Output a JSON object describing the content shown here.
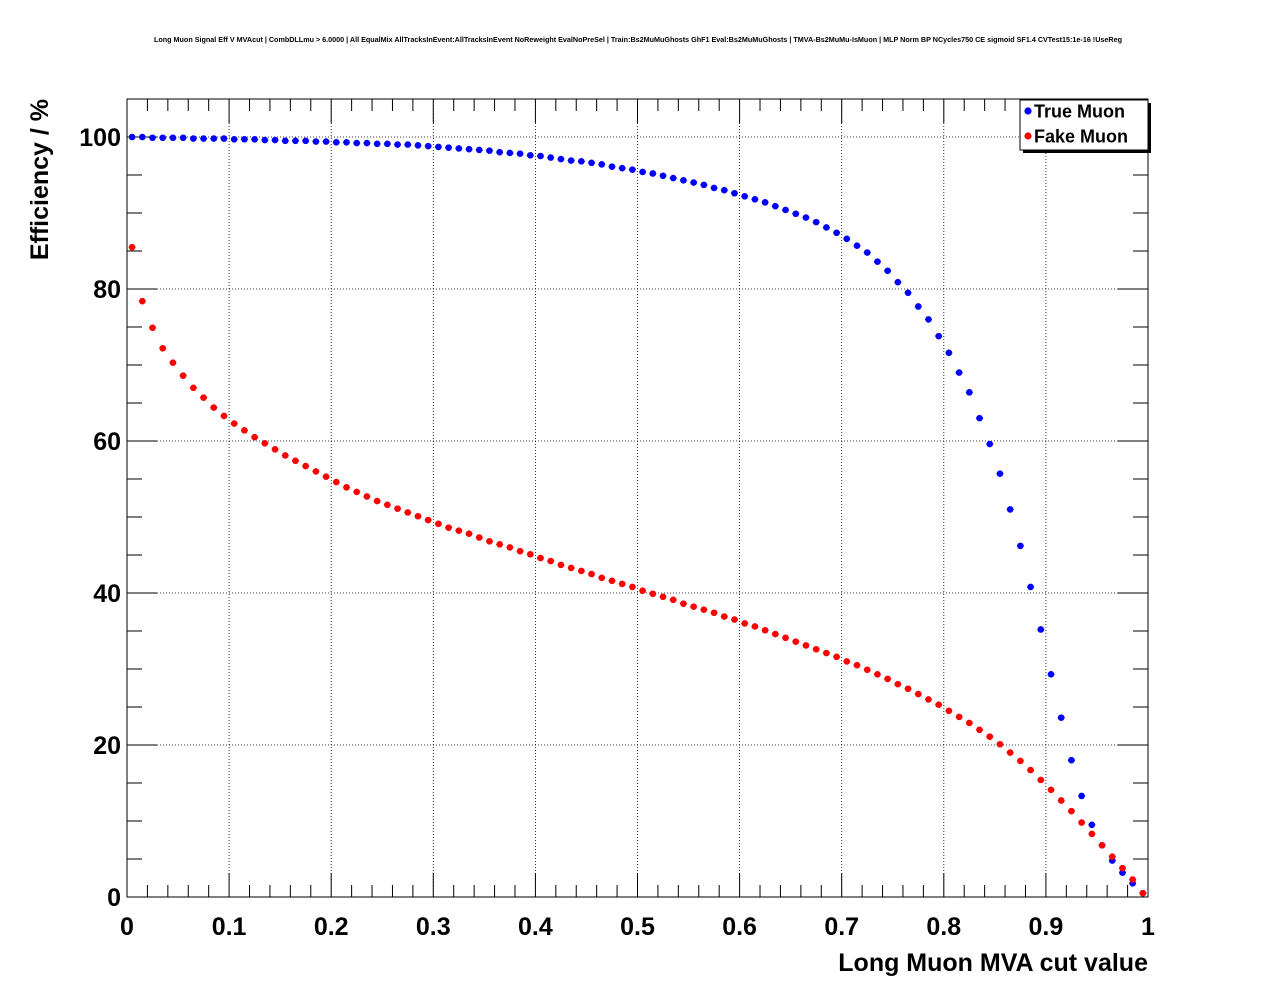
{
  "chart_data": {
    "type": "scatter",
    "title": "Long Muon Signal Eff V MVAcut | CombDLLmu > 6.0000 | All EqualMix AllTracksInEvent:AllTracksInEvent NoReweight EvalNoPreSel | Train:Bs2MuMuGhosts GhF1 Eval:Bs2MuMuGhosts | TMVA-Bs2MuMu-IsMuon | MLP Norm BP NCycles750 CE sigmoid SF1.4 CVTest15:1e-16 !UseReg",
    "xlabel": "Long Muon MVA cut value",
    "ylabel": "Efficiency / %",
    "xlim": [
      0,
      1
    ],
    "ylim": [
      0,
      105
    ],
    "x_ticks": [
      "0",
      "0.1",
      "0.2",
      "0.3",
      "0.4",
      "0.5",
      "0.6",
      "0.7",
      "0.8",
      "0.9",
      "1"
    ],
    "y_ticks": [
      "0",
      "20",
      "40",
      "60",
      "80",
      "100"
    ],
    "grid": true,
    "legend_position": "top-right",
    "x": [
      0.005,
      0.015,
      0.025,
      0.035,
      0.045,
      0.055,
      0.065,
      0.075,
      0.085,
      0.095,
      0.105,
      0.115,
      0.125,
      0.135,
      0.145,
      0.155,
      0.165,
      0.175,
      0.185,
      0.195,
      0.205,
      0.215,
      0.225,
      0.235,
      0.245,
      0.255,
      0.265,
      0.275,
      0.285,
      0.295,
      0.305,
      0.315,
      0.325,
      0.335,
      0.345,
      0.355,
      0.365,
      0.375,
      0.385,
      0.395,
      0.405,
      0.415,
      0.425,
      0.435,
      0.445,
      0.455,
      0.465,
      0.475,
      0.485,
      0.495,
      0.505,
      0.515,
      0.525,
      0.535,
      0.545,
      0.555,
      0.565,
      0.575,
      0.585,
      0.595,
      0.605,
      0.615,
      0.625,
      0.635,
      0.645,
      0.655,
      0.665,
      0.675,
      0.685,
      0.695,
      0.705,
      0.715,
      0.725,
      0.735,
      0.745,
      0.755,
      0.765,
      0.775,
      0.785,
      0.795,
      0.805,
      0.815,
      0.825,
      0.835,
      0.845,
      0.855,
      0.865,
      0.875,
      0.885,
      0.895,
      0.905,
      0.915,
      0.925,
      0.935,
      0.945,
      0.955,
      0.965,
      0.975,
      0.985,
      0.995
    ],
    "series": [
      {
        "name": "True Muon",
        "color": "#0000ff",
        "values": [
          100.0,
          100.0,
          99.9,
          99.9,
          99.9,
          99.9,
          99.8,
          99.8,
          99.8,
          99.8,
          99.7,
          99.7,
          99.7,
          99.6,
          99.6,
          99.5,
          99.5,
          99.5,
          99.4,
          99.4,
          99.3,
          99.3,
          99.2,
          99.2,
          99.1,
          99.1,
          99.0,
          99.0,
          98.9,
          98.8,
          98.7,
          98.6,
          98.5,
          98.4,
          98.3,
          98.2,
          98.0,
          97.9,
          97.8,
          97.6,
          97.5,
          97.3,
          97.1,
          96.9,
          96.8,
          96.6,
          96.4,
          96.1,
          95.9,
          95.7,
          95.4,
          95.2,
          94.9,
          94.6,
          94.3,
          94.0,
          93.7,
          93.3,
          93.0,
          92.6,
          92.2,
          91.8,
          91.4,
          90.9,
          90.4,
          89.9,
          89.4,
          88.8,
          88.1,
          87.4,
          86.6,
          85.7,
          84.8,
          83.6,
          82.4,
          80.9,
          79.5,
          77.7,
          76.0,
          73.8,
          71.6,
          69.0,
          66.4,
          63.0,
          59.6,
          55.7,
          51.0,
          46.2,
          40.8,
          35.2,
          29.3,
          23.6,
          18.0,
          13.3,
          9.5,
          6.8,
          4.8,
          3.2,
          1.8,
          0.5
        ]
      },
      {
        "name": "Fake Muon",
        "color": "#ff0000",
        "values": [
          85.5,
          78.4,
          74.9,
          72.2,
          70.3,
          68.6,
          67.0,
          65.7,
          64.4,
          63.3,
          62.3,
          61.4,
          60.5,
          59.7,
          58.9,
          58.1,
          57.4,
          56.7,
          56.0,
          55.3,
          54.6,
          53.9,
          53.3,
          52.7,
          52.1,
          51.6,
          51.1,
          50.6,
          50.1,
          49.6,
          49.1,
          48.6,
          48.2,
          47.8,
          47.3,
          46.8,
          46.4,
          46.0,
          45.5,
          45.1,
          44.6,
          44.2,
          43.7,
          43.3,
          42.9,
          42.5,
          42.0,
          41.6,
          41.2,
          40.8,
          40.3,
          39.9,
          39.5,
          39.1,
          38.6,
          38.2,
          37.8,
          37.4,
          36.9,
          36.5,
          36.0,
          35.6,
          35.1,
          34.6,
          34.1,
          33.6,
          33.1,
          32.6,
          32.1,
          31.6,
          31.0,
          30.5,
          29.9,
          29.3,
          28.7,
          28.0,
          27.4,
          26.7,
          26.0,
          25.3,
          24.5,
          23.7,
          22.9,
          22.0,
          21.1,
          20.1,
          19.0,
          17.9,
          16.7,
          15.4,
          14.1,
          12.7,
          11.3,
          9.8,
          8.3,
          6.8,
          5.3,
          3.8,
          2.3,
          0.5
        ]
      }
    ]
  }
}
